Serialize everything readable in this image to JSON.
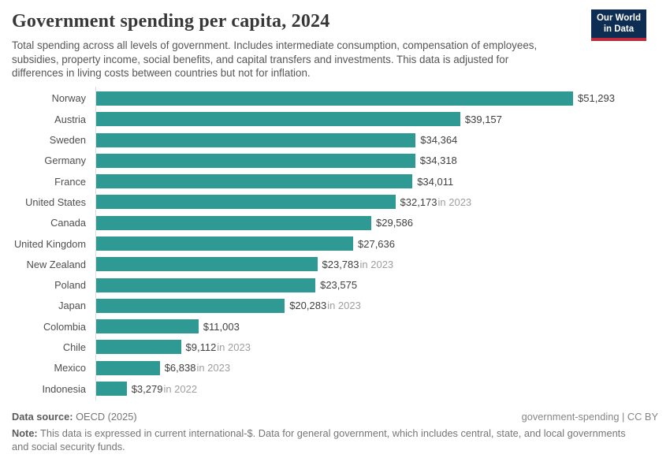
{
  "header": {
    "title": "Government spending per capita, 2024",
    "subtitle": "Total spending across all levels of government. Includes intermediate consumption, compensation of employees, subsidies, property income, social benefits, and capital transfers and investments. This data is adjusted for differences in living costs between countries but not for inflation.",
    "logo": {
      "line1": "Our World",
      "line2": "in Data"
    }
  },
  "colors": {
    "bar": "#2f9a93",
    "logo_bg": "#0d2d52",
    "logo_accent": "#be2d3e"
  },
  "chart_data": {
    "type": "bar",
    "orientation": "horizontal",
    "title": "Government spending per capita, 2024",
    "value_unit": "current international-$",
    "xlim": [
      0,
      51293
    ],
    "grid": false,
    "categories": [
      "Norway",
      "Austria",
      "Sweden",
      "Germany",
      "France",
      "United States",
      "Canada",
      "United Kingdom",
      "New Zealand",
      "Poland",
      "Japan",
      "Colombia",
      "Chile",
      "Mexico",
      "Indonesia"
    ],
    "values": [
      51293,
      39157,
      34364,
      34318,
      34011,
      32173,
      29586,
      27636,
      23783,
      23575,
      20283,
      11003,
      9112,
      6838,
      3279
    ],
    "rows": [
      {
        "label": "Norway",
        "value": 51293,
        "value_label": "$51,293",
        "note": ""
      },
      {
        "label": "Austria",
        "value": 39157,
        "value_label": "$39,157",
        "note": ""
      },
      {
        "label": "Sweden",
        "value": 34364,
        "value_label": "$34,364",
        "note": ""
      },
      {
        "label": "Germany",
        "value": 34318,
        "value_label": "$34,318",
        "note": ""
      },
      {
        "label": "France",
        "value": 34011,
        "value_label": "$34,011",
        "note": ""
      },
      {
        "label": "United States",
        "value": 32173,
        "value_label": "$32,173",
        "note": "in 2023"
      },
      {
        "label": "Canada",
        "value": 29586,
        "value_label": "$29,586",
        "note": ""
      },
      {
        "label": "United Kingdom",
        "value": 27636,
        "value_label": "$27,636",
        "note": ""
      },
      {
        "label": "New Zealand",
        "value": 23783,
        "value_label": "$23,783",
        "note": "in 2023"
      },
      {
        "label": "Poland",
        "value": 23575,
        "value_label": "$23,575",
        "note": ""
      },
      {
        "label": "Japan",
        "value": 20283,
        "value_label": "$20,283",
        "note": "in 2023"
      },
      {
        "label": "Colombia",
        "value": 11003,
        "value_label": "$11,003",
        "note": ""
      },
      {
        "label": "Chile",
        "value": 9112,
        "value_label": "$9,112",
        "note": "in 2023"
      },
      {
        "label": "Mexico",
        "value": 6838,
        "value_label": "$6,838",
        "note": "in 2023"
      },
      {
        "label": "Indonesia",
        "value": 3279,
        "value_label": "$3,279",
        "note": "in 2022"
      }
    ]
  },
  "footer": {
    "source_label": "Data source:",
    "source_value": " OECD (2025)",
    "license_text": "government-spending | CC BY",
    "note_label": "Note:",
    "note_text": " This data is expressed in current international-$. Data for general government, which includes central, state, and local governments and social security funds."
  }
}
